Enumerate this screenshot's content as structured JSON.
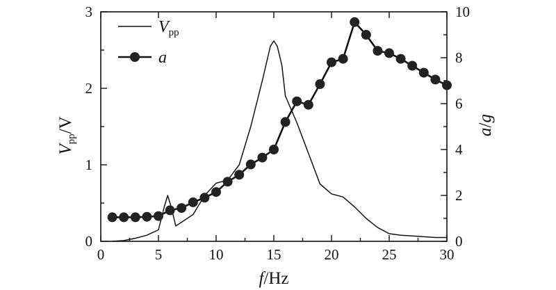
{
  "chart_data": {
    "type": "line",
    "xlabel": {
      "var": "f",
      "unit": "Hz"
    },
    "ylabel_left": {
      "var": "V",
      "sub": "pp",
      "unit": "V"
    },
    "ylabel_right": {
      "var": "a",
      "unit": "g"
    },
    "xlim": [
      0,
      30
    ],
    "ylim_left": [
      0,
      3
    ],
    "ylim_right": [
      0,
      10
    ],
    "x_ticks": [
      0,
      5,
      10,
      15,
      20,
      25,
      30
    ],
    "y_left_ticks": [
      0,
      1,
      2,
      3
    ],
    "y_right_ticks": [
      0,
      2,
      4,
      6,
      8,
      10
    ],
    "grid": false,
    "legend_position": "top-left",
    "series": [
      {
        "name": "V",
        "name_sub": "pp",
        "axis": "left",
        "style": "line",
        "points": [
          [
            1,
            0.0
          ],
          [
            2,
            0.01
          ],
          [
            3,
            0.04
          ],
          [
            4,
            0.08
          ],
          [
            5,
            0.15
          ],
          [
            5.5,
            0.45
          ],
          [
            5.8,
            0.6
          ],
          [
            6.1,
            0.45
          ],
          [
            6.5,
            0.2
          ],
          [
            7,
            0.25
          ],
          [
            8,
            0.35
          ],
          [
            9,
            0.6
          ],
          [
            10,
            0.76
          ],
          [
            11,
            0.8
          ],
          [
            12,
            1.0
          ],
          [
            13,
            1.5
          ],
          [
            14,
            2.1
          ],
          [
            14.7,
            2.55
          ],
          [
            15,
            2.62
          ],
          [
            15.3,
            2.55
          ],
          [
            15.7,
            2.3
          ],
          [
            16,
            1.9
          ],
          [
            17,
            1.55
          ],
          [
            18,
            1.15
          ],
          [
            19,
            0.75
          ],
          [
            20,
            0.62
          ],
          [
            21,
            0.58
          ],
          [
            22,
            0.45
          ],
          [
            23,
            0.3
          ],
          [
            24,
            0.18
          ],
          [
            25,
            0.1
          ],
          [
            26,
            0.08
          ],
          [
            27,
            0.07
          ],
          [
            28,
            0.06
          ],
          [
            29,
            0.05
          ],
          [
            30,
            0.05
          ]
        ]
      },
      {
        "name": "a",
        "axis": "right",
        "style": "line-marker",
        "points": [
          [
            1,
            1.05
          ],
          [
            2,
            1.05
          ],
          [
            3,
            1.05
          ],
          [
            4,
            1.07
          ],
          [
            5,
            1.1
          ],
          [
            6,
            1.35
          ],
          [
            7,
            1.45
          ],
          [
            8,
            1.7
          ],
          [
            9,
            1.9
          ],
          [
            10,
            2.15
          ],
          [
            11,
            2.6
          ],
          [
            12,
            2.9
          ],
          [
            13,
            3.35
          ],
          [
            14,
            3.65
          ],
          [
            15,
            4.0
          ],
          [
            16,
            5.2
          ],
          [
            17,
            6.1
          ],
          [
            18,
            5.95
          ],
          [
            19,
            6.85
          ],
          [
            20,
            7.8
          ],
          [
            21,
            7.95
          ],
          [
            22,
            9.55
          ],
          [
            23,
            9.0
          ],
          [
            24,
            8.3
          ],
          [
            25,
            8.2
          ],
          [
            26,
            7.95
          ],
          [
            27,
            7.65
          ],
          [
            28,
            7.35
          ],
          [
            29,
            7.05
          ],
          [
            30,
            6.8
          ]
        ]
      }
    ]
  }
}
